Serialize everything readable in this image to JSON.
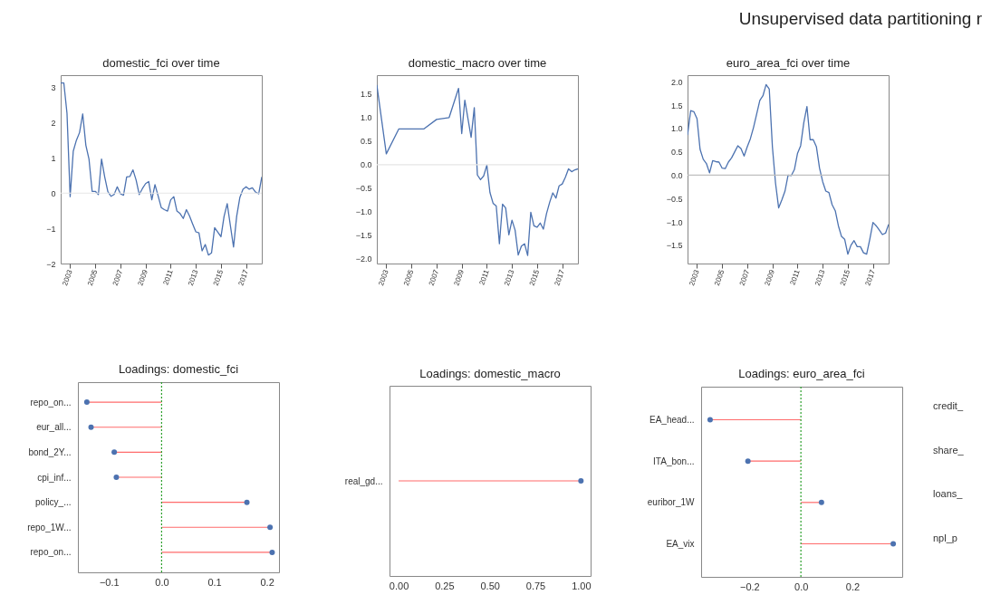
{
  "chart_data": [
    {
      "type": "line",
      "title": "domestic_fci over time",
      "xlim": [
        "2002-04",
        "2018-04"
      ],
      "xticks": [
        "2003",
        "2005",
        "2007",
        "2009",
        "2011",
        "2013",
        "2015",
        "2017"
      ],
      "ylim": [
        -2,
        3.35
      ],
      "yticks": [
        {
          "value": -2,
          "label": "−2"
        },
        {
          "value": -1,
          "label": "−1"
        },
        0,
        1,
        2,
        3
      ],
      "x": [
        "2002-04",
        "2002-07",
        "2002-10",
        "2003-01",
        "2003-04",
        "2003-07",
        "2003-10",
        "2004-01",
        "2004-04",
        "2004-07",
        "2004-10",
        "2005-01",
        "2005-04",
        "2005-07",
        "2005-10",
        "2006-01",
        "2006-04",
        "2006-07",
        "2006-10",
        "2007-01",
        "2007-04",
        "2007-07",
        "2007-10",
        "2008-01",
        "2008-04",
        "2008-07",
        "2008-10",
        "2009-01",
        "2009-04",
        "2009-07",
        "2009-10",
        "2010-01",
        "2010-04",
        "2010-07",
        "2010-10",
        "2011-01",
        "2011-04",
        "2011-07",
        "2011-10",
        "2012-01",
        "2012-04",
        "2012-07",
        "2012-10",
        "2013-01",
        "2013-04",
        "2013-07",
        "2013-10",
        "2014-01",
        "2014-04",
        "2014-07",
        "2014-10",
        "2015-01",
        "2015-04",
        "2015-07",
        "2015-10",
        "2016-01",
        "2016-04",
        "2016-07",
        "2016-10",
        "2017-01",
        "2017-04",
        "2017-07",
        "2017-10",
        "2018-01",
        "2018-04"
      ],
      "series": [
        {
          "color": "#4c72b0",
          "values": [
            3.13,
            3.13,
            2.27,
            -0.1,
            1.19,
            1.5,
            1.72,
            2.25,
            1.36,
            0.97,
            0.05,
            0.05,
            -0.04,
            0.97,
            0.46,
            0.04,
            -0.09,
            -0.04,
            0.18,
            -0.02,
            -0.06,
            0.46,
            0.47,
            0.66,
            0.37,
            -0.04,
            0.13,
            0.27,
            0.33,
            -0.19,
            0.24,
            -0.08,
            -0.41,
            -0.47,
            -0.51,
            -0.19,
            -0.1,
            -0.51,
            -0.58,
            -0.72,
            -0.47,
            -0.65,
            -0.88,
            -1.1,
            -1.13,
            -1.64,
            -1.46,
            -1.76,
            -1.7,
            -0.98,
            -1.11,
            -1.24,
            -0.66,
            -0.3,
            -0.92,
            -1.53,
            -0.66,
            -0.13,
            0.11,
            0.18,
            0.11,
            0.15,
            0.03,
            -0.02,
            0.46
          ]
        }
      ],
      "ref_lines": [
        {
          "axis": "y",
          "value": 0,
          "color": "#e6e6e6"
        }
      ]
    },
    {
      "type": "line",
      "title": "domestic_macro over time",
      "xlim": [
        "2002-04",
        "2018-04"
      ],
      "xticks": [
        "2003",
        "2005",
        "2007",
        "2009",
        "2011",
        "2013",
        "2015",
        "2017"
      ],
      "ylim": [
        -2.1,
        1.9
      ],
      "yticks": [
        {
          "value": -2,
          "label": "−2.0"
        },
        {
          "value": -1.5,
          "label": "−1.5"
        },
        {
          "value": -1,
          "label": "−1.0"
        },
        {
          "value": -0.5,
          "label": "−0.5"
        },
        {
          "value": 0,
          "label": "0.0"
        },
        0.5,
        {
          "value": 1,
          "label": "1.0"
        },
        1.5
      ],
      "x": [
        "2002-04",
        "2003-01",
        "2004-01",
        "2006-01",
        "2007-01",
        "2008-01",
        "2008-10",
        "2009-01",
        "2009-04",
        "2009-10",
        "2010-01",
        "2010-04",
        "2010-07",
        "2010-10",
        "2011-01",
        "2011-04",
        "2011-07",
        "2011-10",
        "2012-01",
        "2012-04",
        "2012-07",
        "2012-10",
        "2013-01",
        "2013-04",
        "2013-07",
        "2013-10",
        "2014-01",
        "2014-04",
        "2014-07",
        "2014-10",
        "2015-01",
        "2015-04",
        "2015-07",
        "2015-10",
        "2016-01",
        "2016-04",
        "2016-07",
        "2016-10",
        "2017-01",
        "2017-04",
        "2017-07",
        "2017-10",
        "2018-01",
        "2018-04"
      ],
      "series": [
        {
          "color": "#4c72b0",
          "values": [
            1.69,
            0.23,
            0.76,
            0.76,
            0.96,
            1.0,
            1.62,
            0.66,
            1.37,
            0.58,
            1.21,
            -0.22,
            -0.32,
            -0.24,
            -0.01,
            -0.59,
            -0.82,
            -0.88,
            -1.68,
            -0.84,
            -0.92,
            -1.49,
            -1.18,
            -1.39,
            -1.92,
            -1.73,
            -1.68,
            -1.93,
            -1.01,
            -1.3,
            -1.33,
            -1.24,
            -1.37,
            -1.04,
            -0.8,
            -0.6,
            -0.71,
            -0.45,
            -0.41,
            -0.27,
            -0.09,
            -0.15,
            -0.11,
            -0.09
          ]
        }
      ],
      "ref_lines": [
        {
          "axis": "y",
          "value": 0,
          "color": "#e6e6e6"
        }
      ]
    },
    {
      "type": "line",
      "title": "euro_area_fci over time",
      "xlim": [
        "2002-04",
        "2018-04"
      ],
      "xticks": [
        "2003",
        "2005",
        "2007",
        "2009",
        "2011",
        "2013",
        "2015",
        "2017"
      ],
      "ylim": [
        -1.89,
        2.14
      ],
      "yticks": [
        {
          "value": -1.5,
          "label": "−1.5"
        },
        {
          "value": -1,
          "label": "−1.0"
        },
        {
          "value": -0.5,
          "label": "−0.5"
        },
        {
          "value": 0,
          "label": "0.0"
        },
        0.5,
        {
          "value": 1,
          "label": "1.0"
        },
        1.5,
        {
          "value": 2,
          "label": "2.0"
        }
      ],
      "x": [
        "2002-04",
        "2002-07",
        "2002-10",
        "2003-01",
        "2003-04",
        "2003-07",
        "2003-10",
        "2004-01",
        "2004-04",
        "2004-07",
        "2004-10",
        "2005-01",
        "2005-04",
        "2005-07",
        "2005-10",
        "2006-01",
        "2006-04",
        "2006-07",
        "2006-10",
        "2007-01",
        "2007-04",
        "2007-07",
        "2007-10",
        "2008-01",
        "2008-04",
        "2008-07",
        "2008-10",
        "2009-01",
        "2009-04",
        "2009-07",
        "2009-10",
        "2010-01",
        "2010-04",
        "2010-07",
        "2010-10",
        "2011-01",
        "2011-04",
        "2011-07",
        "2011-10",
        "2012-01",
        "2012-04",
        "2012-07",
        "2012-10",
        "2013-01",
        "2013-04",
        "2013-07",
        "2013-10",
        "2014-01",
        "2014-04",
        "2014-07",
        "2014-10",
        "2015-01",
        "2015-04",
        "2015-07",
        "2015-10",
        "2016-01",
        "2016-04",
        "2016-07",
        "2016-10",
        "2017-01",
        "2017-04",
        "2017-07",
        "2017-10",
        "2018-01",
        "2018-04"
      ],
      "series": [
        {
          "color": "#4c72b0",
          "values": [
            0.86,
            1.38,
            1.36,
            1.21,
            0.55,
            0.34,
            0.25,
            0.05,
            0.31,
            0.29,
            0.28,
            0.15,
            0.14,
            0.28,
            0.37,
            0.5,
            0.63,
            0.57,
            0.41,
            0.61,
            0.78,
            1.02,
            1.31,
            1.6,
            1.7,
            1.94,
            1.84,
            0.6,
            -0.17,
            -0.7,
            -0.53,
            -0.34,
            0.0,
            -0.01,
            0.12,
            0.47,
            0.63,
            1.12,
            1.47,
            0.76,
            0.76,
            0.61,
            0.15,
            -0.14,
            -0.34,
            -0.37,
            -0.63,
            -0.76,
            -1.08,
            -1.31,
            -1.37,
            -1.69,
            -1.5,
            -1.4,
            -1.53,
            -1.53,
            -1.66,
            -1.69,
            -1.37,
            -1.01,
            -1.08,
            -1.17,
            -1.27,
            -1.24,
            -1.05
          ]
        }
      ],
      "ref_lines": [
        {
          "axis": "y",
          "value": 0,
          "color": "#bfbfbf"
        }
      ]
    },
    {
      "type": "lollipop",
      "title": "Loadings: domestic_fci",
      "orientation": "horizontal",
      "marker": "circle",
      "categories": [
        "repo_on...",
        "eur_all...",
        "bond_2Y...",
        "cpi_inf...",
        "policy_...",
        "repo_1W...",
        "repo_on..."
      ],
      "xlim": [
        -0.159,
        0.223
      ],
      "xticks": [
        {
          "value": -0.1,
          "label": "−0.1"
        },
        {
          "value": 0,
          "label": "0.0"
        },
        0.1,
        0.2
      ],
      "series": [
        {
          "color": "#4c72b0",
          "values": [
            -0.142,
            -0.134,
            -0.09,
            -0.086,
            0.162,
            0.206,
            0.21
          ]
        }
      ],
      "ref_lines": [
        {
          "axis": "x",
          "value": 0,
          "color": "#2ca02c",
          "line_style": "dotted"
        }
      ]
    },
    {
      "type": "lollipop",
      "title": "Loadings: domestic_macro",
      "orientation": "horizontal",
      "marker": "circle",
      "categories": [
        "real_gd..."
      ],
      "xlim": [
        -0.05,
        1.053
      ],
      "xticks": [
        {
          "value": 0,
          "label": "0.00"
        },
        0.25,
        {
          "value": 0.5,
          "label": "0.50"
        },
        0.75,
        {
          "value": 1,
          "label": "1.00"
        }
      ],
      "series": [
        {
          "color": "#4c72b0",
          "values": [
            1.0
          ]
        }
      ]
    },
    {
      "type": "lollipop",
      "title": "Loadings: euro_area_fci",
      "orientation": "horizontal",
      "marker": "circle",
      "categories": [
        "EA_head...",
        "ITA_bon...",
        "euribor_1W",
        "EA_vix"
      ],
      "xlim": [
        -0.388,
        0.394
      ],
      "xticks": [
        {
          "value": -0.2,
          "label": "−0.2"
        },
        {
          "value": 0,
          "label": "0.0"
        },
        0.2
      ],
      "series": [
        {
          "color": "#4c72b0",
          "values": [
            -0.353,
            -0.206,
            0.08,
            0.359
          ]
        }
      ],
      "ref_lines": [
        {
          "axis": "x",
          "value": 0,
          "color": "#2ca02c",
          "line_style": "dotted"
        }
      ]
    },
    {
      "type": "other",
      "title": "Unsupervised data partitioning r",
      "annotations": [
        "credit_",
        "share_",
        "loans_",
        "npl_p"
      ]
    }
  ]
}
